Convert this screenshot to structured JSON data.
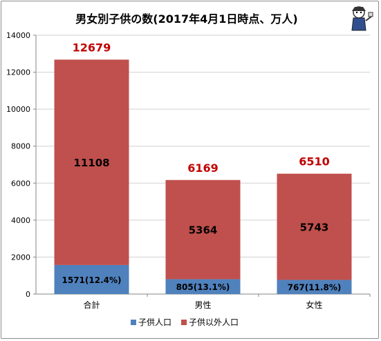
{
  "chart_data": {
    "type": "bar",
    "stacked": true,
    "title": "男女別子供の数(2017年4月1日時点、万人)",
    "categories": [
      "合計",
      "男性",
      "女性"
    ],
    "series": [
      {
        "name": "子供人口",
        "values": [
          1571,
          805,
          767
        ],
        "color": "#4f81bd",
        "labels": [
          "1571(12.4%)",
          "805(13.1%)",
          "767(11.8%)"
        ]
      },
      {
        "name": "子供以外人口",
        "values": [
          11108,
          5364,
          5743
        ],
        "color": "#c0504d",
        "labels": [
          "11108",
          "5364",
          "5743"
        ]
      }
    ],
    "totals": [
      12679,
      6169,
      6510
    ],
    "total_label_color": "#c00000",
    "ylim": [
      0,
      14000
    ],
    "yticks": [
      "0",
      "2000",
      "4000",
      "6000",
      "8000",
      "10000",
      "12000",
      "14000"
    ],
    "grid": true,
    "legend_position": "bottom"
  }
}
